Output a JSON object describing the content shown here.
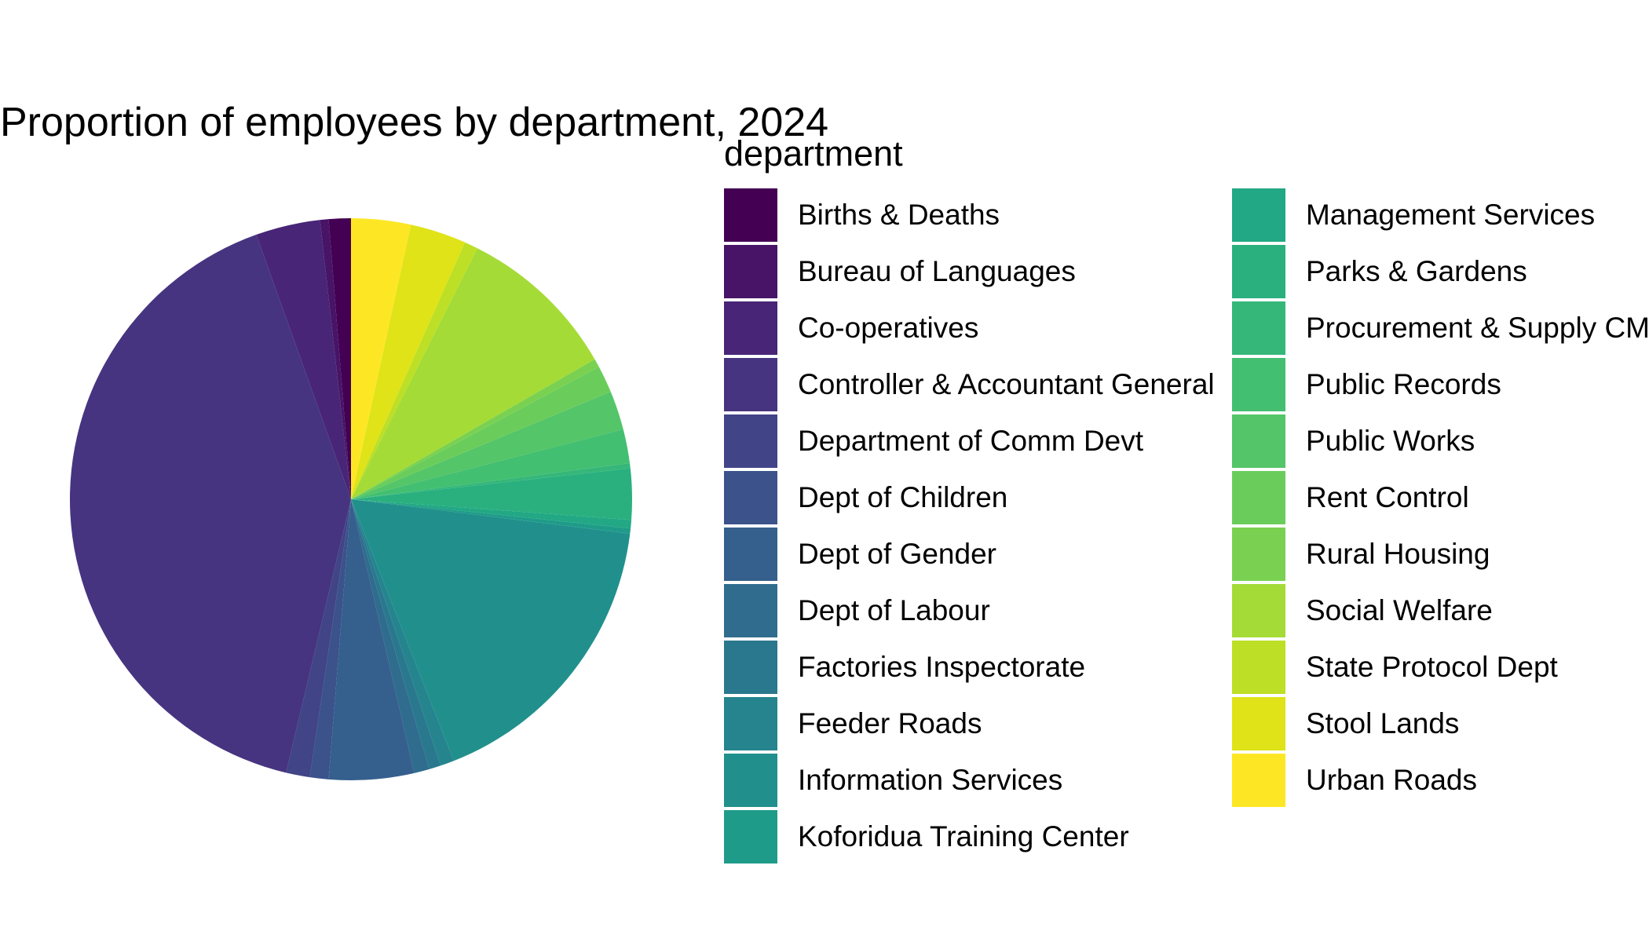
{
  "chart_data": {
    "type": "pie",
    "title": "Proportion of employees by department, 2024",
    "legend_title": "department",
    "legend_placement": "right",
    "slices": [
      {
        "label": "Births & Deaths",
        "value": 1.3,
        "color": "#440154"
      },
      {
        "label": "Bureau of Languages",
        "value": 0.5,
        "color": "#481467"
      },
      {
        "label": "Co-operatives",
        "value": 3.8,
        "color": "#482576"
      },
      {
        "label": "Controller & Accountant General",
        "value": 41.8,
        "color": "#463480"
      },
      {
        "label": "Department of Comm Devt",
        "value": 1.4,
        "color": "#414487"
      },
      {
        "label": "Dept of Children",
        "value": 1.1,
        "color": "#3B528B"
      },
      {
        "label": "Dept of Gender",
        "value": 5.0,
        "color": "#355F8D"
      },
      {
        "label": "Dept of Labour",
        "value": 0.9,
        "color": "#2F6C8E"
      },
      {
        "label": "Factories Inspectorate",
        "value": 0.7,
        "color": "#2A788E"
      },
      {
        "label": "Feeder Roads",
        "value": 0.8,
        "color": "#25848E"
      },
      {
        "label": "Information Services",
        "value": 17.5,
        "color": "#21908C"
      },
      {
        "label": "Koforidua Training Center",
        "value": 0.3,
        "color": "#1F9C89"
      },
      {
        "label": "Management Services",
        "value": 0.5,
        "color": "#22A884"
      },
      {
        "label": "Parks & Gardens",
        "value": 3.0,
        "color": "#2AB07F"
      },
      {
        "label": "Procurement & Supply CM",
        "value": 0.3,
        "color": "#35B779"
      },
      {
        "label": "Public Records",
        "value": 2.0,
        "color": "#43BF71"
      },
      {
        "label": "Public Works",
        "value": 2.3,
        "color": "#54C568"
      },
      {
        "label": "Rent Control",
        "value": 1.6,
        "color": "#6ACD5B"
      },
      {
        "label": "Rural Housing",
        "value": 0.5,
        "color": "#7AD151"
      },
      {
        "label": "Social Welfare",
        "value": 9.5,
        "color": "#A5DB36"
      },
      {
        "label": "State Protocol Dept",
        "value": 0.8,
        "color": "#BDDF26"
      },
      {
        "label": "Stool Lands",
        "value": 3.3,
        "color": "#DFE318"
      },
      {
        "label": "Urban Roads",
        "value": 3.5,
        "color": "#FDE725"
      }
    ]
  }
}
